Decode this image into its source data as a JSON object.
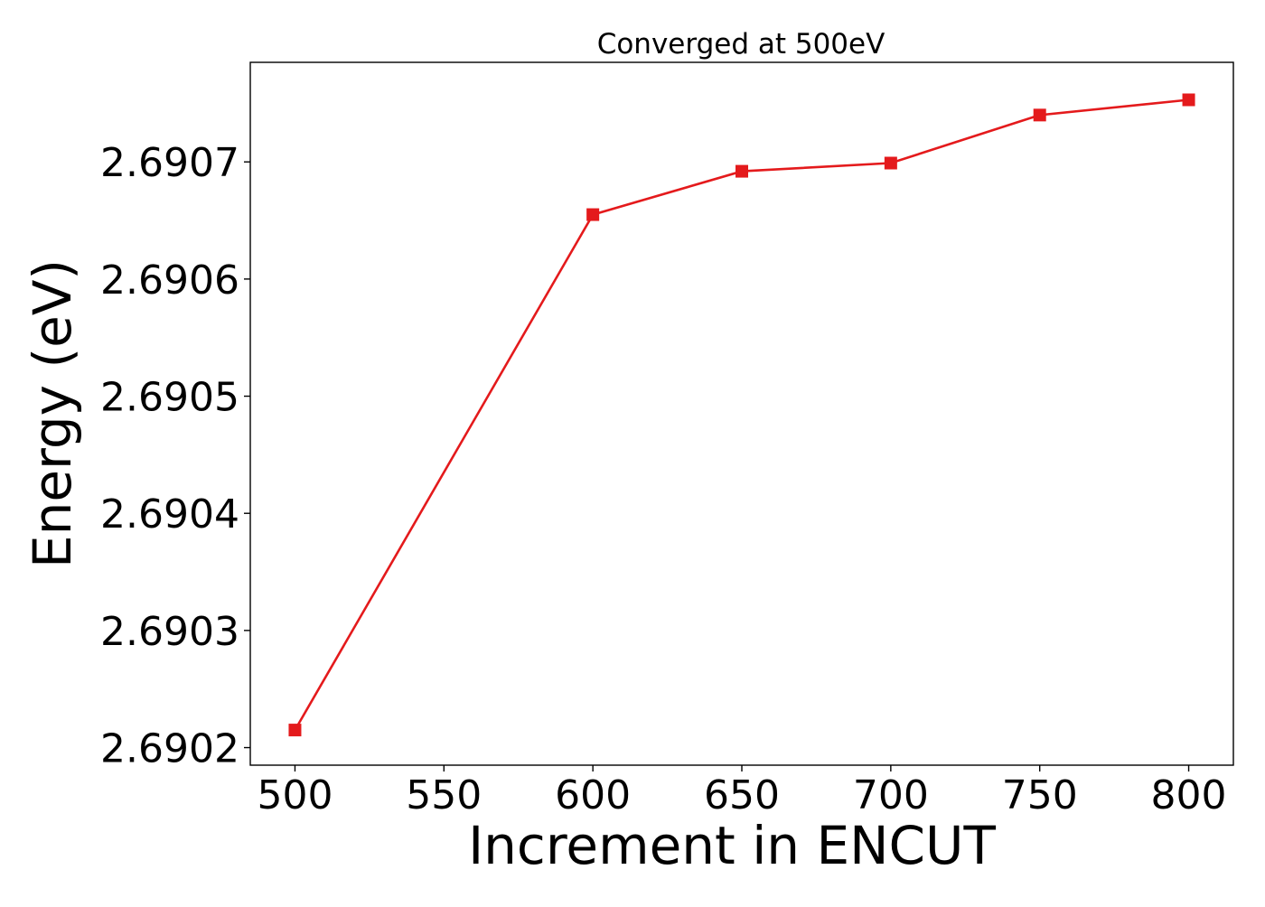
{
  "chart_data": {
    "type": "line",
    "title": "Converged at 500eV",
    "xlabel": "Increment in ENCUT",
    "ylabel": "Energy (eV)",
    "x": [
      500,
      600,
      650,
      700,
      750,
      800
    ],
    "series": [
      {
        "values": [
          2.690215,
          2.690655,
          2.690692,
          2.690699,
          2.69074,
          2.690753
        ],
        "color": "#e41a1c",
        "marker": "square"
      }
    ],
    "xticks": [
      500,
      550,
      600,
      650,
      700,
      750,
      800
    ],
    "xtick_labels": [
      "500",
      "550",
      "600",
      "650",
      "700",
      "750",
      "800"
    ],
    "yticks": [
      2.6902,
      2.6903,
      2.6904,
      2.6905,
      2.6906,
      2.6907
    ],
    "ytick_labels": [
      "2.6902",
      "2.6903",
      "2.6904",
      "2.6905",
      "2.6906",
      "2.6907"
    ],
    "xlim": [
      485,
      815
    ],
    "ylim": [
      2.690185,
      2.690785
    ],
    "grid": false,
    "legend": false
  }
}
